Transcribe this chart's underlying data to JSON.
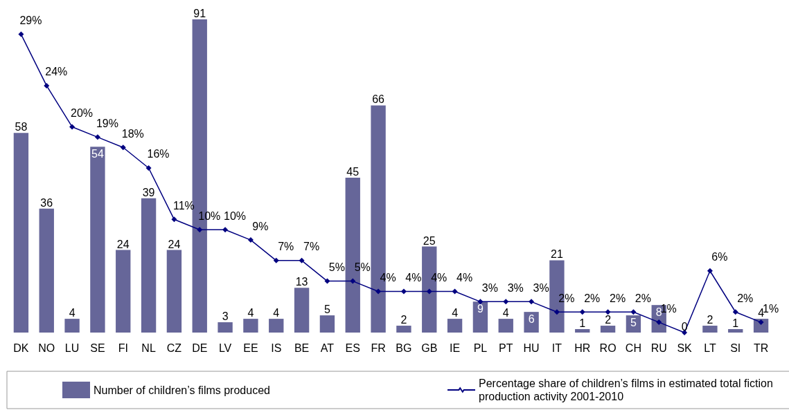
{
  "chart_data": {
    "type": "bar",
    "categories": [
      "DK",
      "NO",
      "LU",
      "SE",
      "FI",
      "NL",
      "CZ",
      "DE",
      "LV",
      "EE",
      "IS",
      "BE",
      "AT",
      "ES",
      "FR",
      "BG",
      "GB",
      "IE",
      "PL",
      "PT",
      "HU",
      "IT",
      "HR",
      "RO",
      "CH",
      "RU",
      "SK",
      "LT",
      "SI",
      "TR"
    ],
    "series": [
      {
        "name": "Number of children’s films produced",
        "color": "#666699",
        "values": [
          58,
          36,
          4,
          54,
          24,
          39,
          24,
          91,
          3,
          4,
          4,
          13,
          5,
          45,
          66,
          2,
          25,
          4,
          9,
          4,
          6,
          21,
          1,
          2,
          5,
          8,
          0,
          2,
          1,
          4
        ],
        "value_labels": [
          "58",
          "36",
          "4",
          "54",
          "24",
          "39",
          "24",
          "91",
          "3",
          "4",
          "4",
          "13",
          "5",
          "45",
          "66",
          "2",
          "25",
          "4",
          "9",
          "4",
          "6",
          "21",
          "1",
          "2",
          "5",
          "8",
          "0",
          "2",
          "1",
          "4"
        ]
      },
      {
        "name": "Percentage share of children’s films in estimated total fiction production activity 2001-2010",
        "type": "line",
        "axis": "y2",
        "color": "#000080",
        "values": [
          29,
          24,
          20,
          19,
          18,
          16,
          11,
          10,
          10,
          9,
          7,
          7,
          5,
          5,
          4,
          4,
          4,
          4,
          3,
          3,
          3,
          2,
          2,
          2,
          2,
          1,
          0,
          6,
          2,
          1
        ],
        "value_labels": [
          "29%",
          "24%",
          "20%",
          "19%",
          "18%",
          "16%",
          "11%",
          "10%",
          "10%",
          "9%",
          "7%",
          "7%",
          "5%",
          "5%",
          "4%",
          "4%",
          "4%",
          "4%",
          "3%",
          "3%",
          "3%",
          "2%",
          "2%",
          "2%",
          "2%",
          "1%",
          null,
          "6%",
          "2%",
          "1%"
        ]
      }
    ],
    "marker": "diamond",
    "line_style": "solid",
    "legend": "bottom",
    "grid": false
  }
}
